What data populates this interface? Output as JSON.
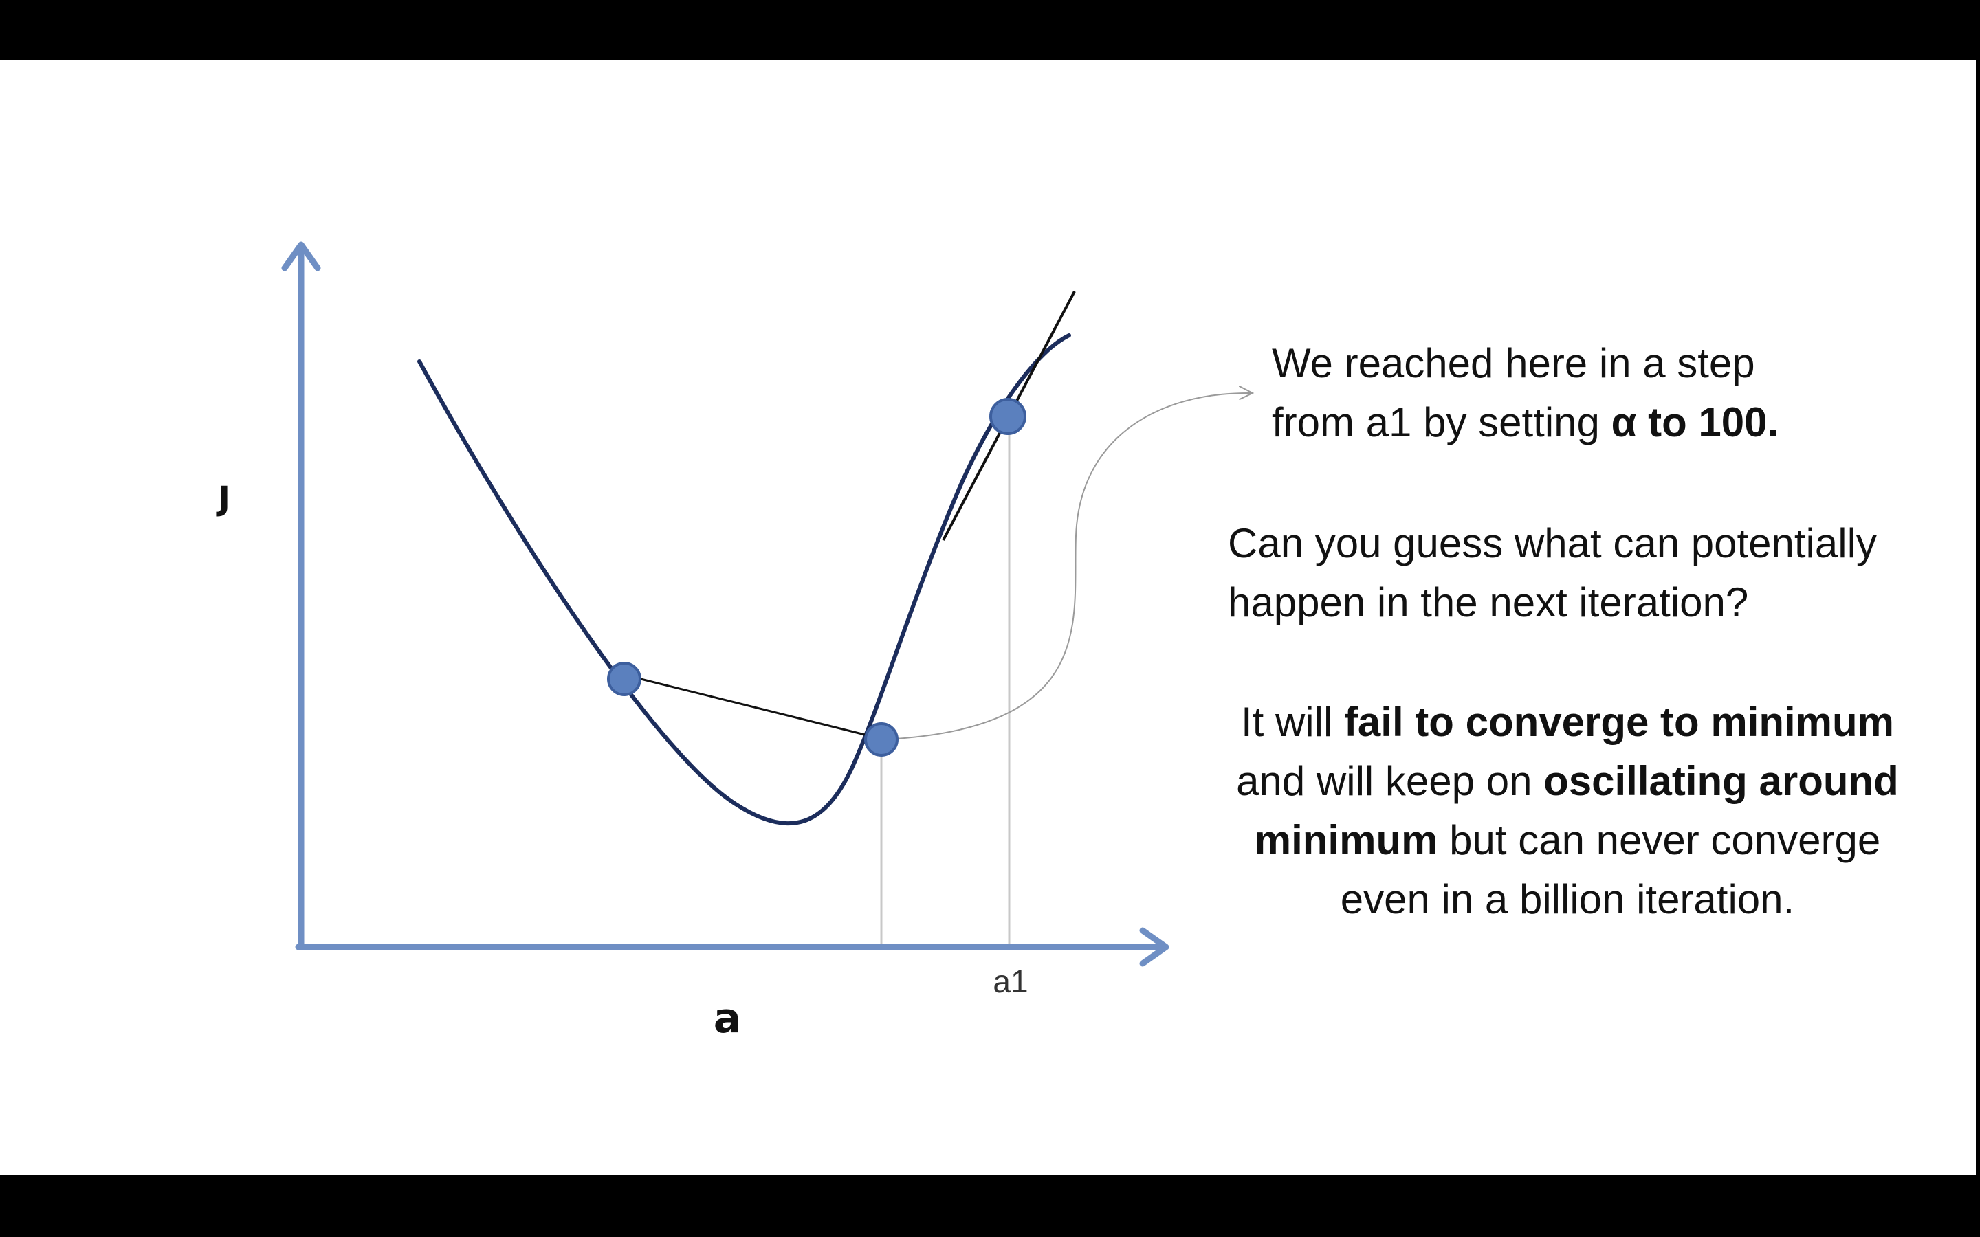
{
  "axes": {
    "y_label": "J",
    "x_label": "a",
    "x_tick": "a1"
  },
  "colors": {
    "axis": "#6f8fc4",
    "curve": "#1c2d5c",
    "point_fill": "#5b80be",
    "point_stroke": "#3d5f9e",
    "guide": "#c8c8c8",
    "tangent": "#111111",
    "arrow": "#111111",
    "connector": "#9a9a9a"
  },
  "text": {
    "p1_line1": "We reached here in a step",
    "p1_line2_a": "from a1 by setting ",
    "p1_line2_b": "α to 100.",
    "p2_line1": "Can you guess what can potentially",
    "p2_line2": "happen in the next iteration?",
    "p3_l1_a": "It will ",
    "p3_l1_b": "fail to converge to minimum",
    "p3_l2_a": "and will keep on ",
    "p3_l2_b": "oscillating around",
    "p3_l3_a": "minimum",
    "p3_l3_b": " but can never converge",
    "p3_l4": "even in a billion iteration."
  }
}
